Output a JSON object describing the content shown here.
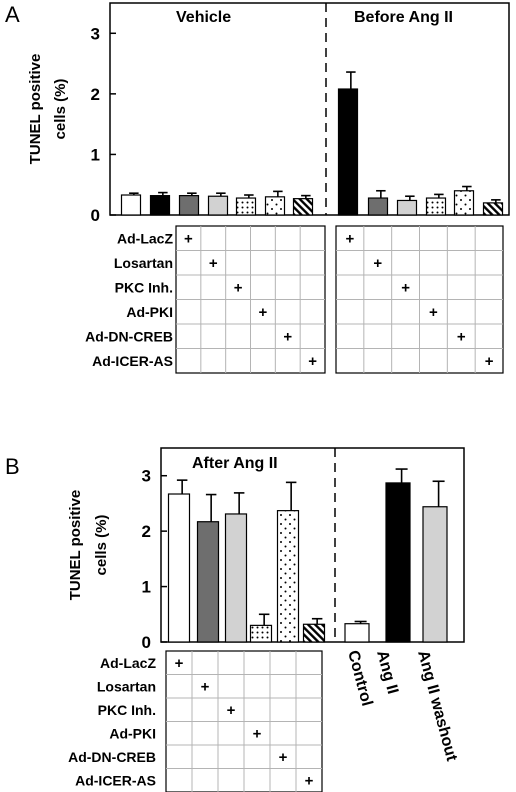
{
  "chart_data": [
    {
      "panel": "A",
      "type": "bar",
      "ylabel": "TUNEL positive cells (%)",
      "ylim": [
        0,
        3.5
      ],
      "yticks": [
        "0",
        "1",
        "2",
        "3"
      ],
      "groups": [
        {
          "title": "Vehicle",
          "values": [
            0.33,
            0.32,
            0.32,
            0.31,
            0.28,
            0.3,
            0.27
          ],
          "errors": [
            0.03,
            0.05,
            0.04,
            0.05,
            0.05,
            0.09,
            0.05
          ]
        },
        {
          "title": "Before Ang II",
          "values": [
            2.08,
            0.28,
            0.24,
            0.28,
            0.4,
            0.2
          ],
          "errors": [
            0.28,
            0.12,
            0.07,
            0.06,
            0.07,
            0.05
          ]
        }
      ],
      "treatments": [
        "Ad-LacZ",
        "Losartan",
        "PKC Inh.",
        "Ad-PKI",
        "Ad-DN-CREB",
        "Ad-ICER-AS"
      ],
      "mark": "+"
    },
    {
      "panel": "B",
      "type": "bar",
      "ylabel": "TUNEL positive cells (%)",
      "ylim": [
        0,
        3.5
      ],
      "yticks": [
        "0",
        "1",
        "2",
        "3"
      ],
      "groups": [
        {
          "title": "After Ang II",
          "values": [
            2.67,
            2.17,
            2.31,
            0.3,
            2.37,
            0.32
          ],
          "errors": [
            0.25,
            0.49,
            0.38,
            0.2,
            0.51,
            0.1
          ]
        },
        {
          "title": "",
          "categories": [
            "Control",
            "Ang II",
            "Ang II washout"
          ],
          "values": [
            0.33,
            2.87,
            2.44
          ],
          "errors": [
            0.04,
            0.25,
            0.46
          ]
        }
      ],
      "treatments": [
        "Ad-LacZ",
        "Losartan",
        "PKC Inh.",
        "Ad-PKI",
        "Ad-DN-CREB",
        "Ad-ICER-AS"
      ],
      "mark": "+"
    }
  ],
  "colors": {
    "white": "#ffffff",
    "black": "#000000",
    "darkgray": "#6e6e6e",
    "lightgray": "#d2d2d2",
    "grid": "#b4b4b4"
  }
}
